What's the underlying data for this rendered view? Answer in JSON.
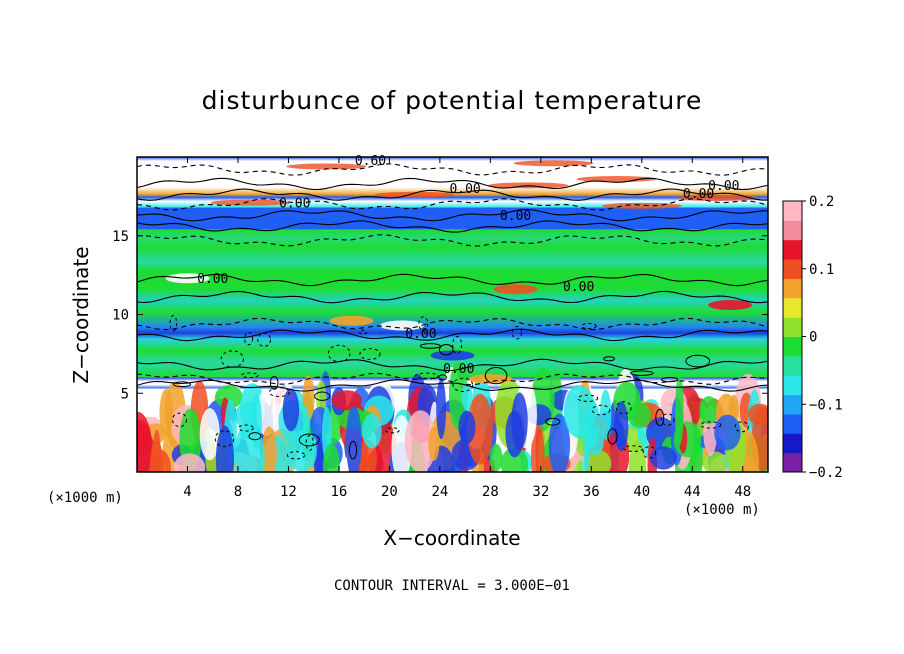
{
  "chart_data": {
    "type": "heatmap",
    "title": "disturbunce of potential temperature",
    "xlabel": "X−coordinate",
    "ylabel": "Z−coordinate",
    "x_unit": "(×1000 m)",
    "x_ticks": [
      4,
      8,
      12,
      16,
      20,
      24,
      28,
      32,
      36,
      40,
      44,
      48
    ],
    "y_ticks": [
      5,
      10,
      15
    ],
    "xlim": [
      0,
      50
    ],
    "ylim": [
      0,
      20
    ],
    "colorbar": {
      "range": [
        -0.2,
        0.2
      ],
      "tick_labels": [
        "0.2",
        "0.1",
        "0",
        "−0.1",
        "−0.2"
      ],
      "tick_values": [
        0.2,
        0.1,
        0,
        -0.1,
        -0.2
      ],
      "colors": [
        "#7a1fa8",
        "#1818c8",
        "#1f5ff5",
        "#21a6f5",
        "#2ae8e8",
        "#27e0a0",
        "#1edc33",
        "#8ee22b",
        "#e8e82b",
        "#f2a22c",
        "#ee5022",
        "#e8152a",
        "#f38c9a",
        "#ffb8c4"
      ]
    },
    "contour_labels": [
      "0.00",
      "0.60"
    ],
    "contour_interval_text": "CONTOUR INTERVAL = 3.000E−01",
    "bands": [
      {
        "z_from": 0.0,
        "z_to": 5.3,
        "pattern": "plumes"
      },
      {
        "z_from": 5.3,
        "z_to": 6.0,
        "pattern": "blue_white_layer"
      },
      {
        "z_from": 6.0,
        "z_to": 15.4,
        "pattern": "green_cyan_stripes"
      },
      {
        "z_from": 15.4,
        "z_to": 16.8,
        "pattern": "upper_blue_transition"
      },
      {
        "z_from": 16.8,
        "z_to": 20.0,
        "pattern": "upper_white_red"
      }
    ]
  }
}
